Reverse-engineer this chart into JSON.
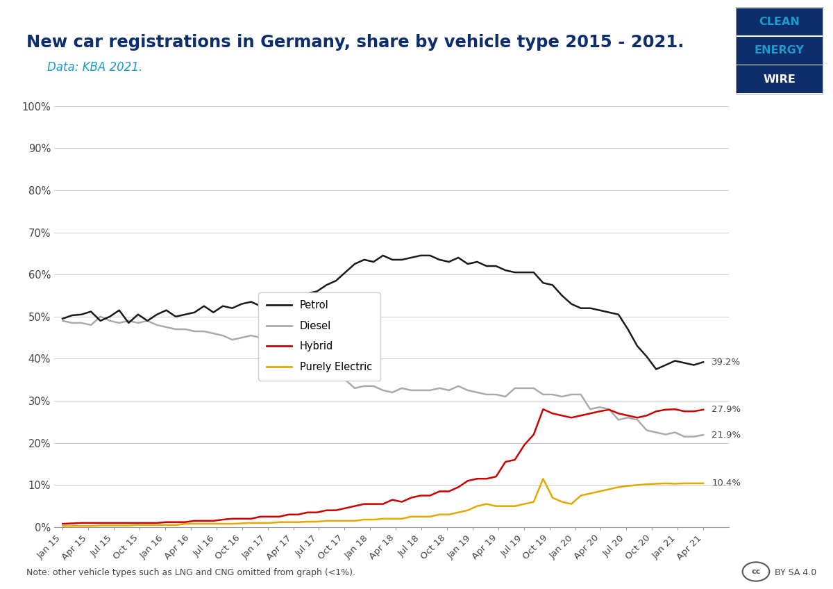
{
  "title": "New car registrations in Germany, share by vehicle type 2015 - 2021.",
  "subtitle": "Data: KBA 2021.",
  "note": "Note: other vehicle types such as LNG and CNG omitted from graph (<1%).",
  "title_color": "#0d2d6b",
  "subtitle_color": "#1a9bcb",
  "x_labels": [
    "Jan 15",
    "Apr 15",
    "Jul 15",
    "Oct 15",
    "Jan 16",
    "Apr 16",
    "Jul 16",
    "Oct 16",
    "Jan 17",
    "Apr 17",
    "Jul 17",
    "Oct 17",
    "Jan 18",
    "Apr 18",
    "Jul 18",
    "Oct 18",
    "Jan 19",
    "Apr 19",
    "Jul 19",
    "Oct 19",
    "Jan 20",
    "Apr 20",
    "Jul 20",
    "Oct 20",
    "Jan 21",
    "Apr 21"
  ],
  "petrol": [
    49.5,
    50.3,
    50.5,
    51.2,
    49.0,
    50.0,
    51.5,
    48.5,
    50.5,
    49.0,
    50.5,
    51.5,
    50.0,
    50.5,
    51.0,
    52.5,
    51.0,
    52.5,
    52.0,
    53.0,
    53.5,
    52.5,
    53.0,
    53.5,
    53.5,
    55.0,
    55.5,
    56.0,
    57.5,
    58.5,
    60.5,
    62.5,
    63.5,
    63.0,
    64.5,
    63.5,
    63.5,
    64.0,
    64.5,
    64.5,
    63.5,
    63.0,
    64.0,
    62.5,
    63.0,
    62.0,
    62.0,
    61.0,
    60.5,
    60.5,
    60.5,
    58.0,
    57.5,
    55.0,
    53.0,
    52.0,
    52.0,
    51.5,
    51.0,
    50.5,
    47.0,
    43.0,
    40.5,
    37.5,
    38.5,
    39.5,
    39.0,
    38.5,
    39.2
  ],
  "diesel": [
    49.0,
    48.5,
    48.5,
    48.0,
    50.0,
    49.0,
    48.5,
    49.0,
    48.5,
    49.0,
    48.0,
    47.5,
    47.0,
    47.0,
    46.5,
    46.5,
    46.0,
    45.5,
    44.5,
    45.0,
    45.5,
    45.0,
    44.5,
    41.5,
    41.5,
    41.5,
    41.0,
    41.0,
    40.0,
    38.0,
    35.0,
    33.0,
    33.5,
    33.5,
    32.5,
    32.0,
    33.0,
    32.5,
    32.5,
    32.5,
    33.0,
    32.5,
    33.5,
    32.5,
    32.0,
    31.5,
    31.5,
    31.0,
    33.0,
    33.0,
    33.0,
    31.5,
    31.5,
    31.0,
    31.5,
    31.5,
    28.0,
    28.5,
    28.0,
    25.5,
    26.0,
    25.5,
    23.0,
    22.5,
    22.0,
    22.5,
    21.5,
    21.5,
    21.9
  ],
  "hybrid": [
    0.8,
    0.9,
    1.0,
    1.0,
    1.0,
    1.0,
    1.0,
    1.0,
    1.0,
    1.0,
    1.0,
    1.2,
    1.2,
    1.2,
    1.5,
    1.5,
    1.5,
    1.8,
    2.0,
    2.0,
    2.0,
    2.5,
    2.5,
    2.5,
    3.0,
    3.0,
    3.5,
    3.5,
    4.0,
    4.0,
    4.5,
    5.0,
    5.5,
    5.5,
    5.5,
    6.5,
    6.0,
    7.0,
    7.5,
    7.5,
    8.5,
    8.5,
    9.5,
    11.0,
    11.5,
    11.5,
    12.0,
    15.5,
    16.0,
    19.5,
    22.0,
    28.0,
    27.0,
    26.5,
    26.0,
    26.5,
    27.0,
    27.5,
    27.9,
    27.0,
    26.5,
    26.0,
    26.5,
    27.5,
    27.9,
    28.0,
    27.5,
    27.5,
    27.9
  ],
  "electric": [
    0.3,
    0.3,
    0.3,
    0.3,
    0.4,
    0.4,
    0.4,
    0.4,
    0.5,
    0.5,
    0.5,
    0.5,
    0.5,
    0.8,
    0.8,
    0.8,
    0.8,
    0.8,
    0.8,
    0.9,
    1.0,
    1.0,
    1.0,
    1.2,
    1.2,
    1.2,
    1.3,
    1.3,
    1.5,
    1.5,
    1.5,
    1.5,
    1.8,
    1.8,
    2.0,
    2.0,
    2.0,
    2.5,
    2.5,
    2.5,
    3.0,
    3.0,
    3.5,
    4.0,
    5.0,
    5.5,
    5.0,
    5.0,
    5.0,
    5.5,
    6.0,
    11.5,
    7.0,
    6.0,
    5.5,
    7.5,
    8.0,
    8.5,
    9.0,
    9.5,
    9.8,
    10.0,
    10.2,
    10.3,
    10.4,
    10.3,
    10.4,
    10.4,
    10.4
  ],
  "end_labels": {
    "petrol": "39.2%",
    "diesel": "21.9%",
    "hybrid": "27.9%",
    "electric": "10.4%"
  },
  "petrol_color": "#1a1a1a",
  "diesel_color": "#aaaaaa",
  "hybrid_color": "#cc0000",
  "electric_color": "#e5a800",
  "background_color": "#ffffff",
  "plot_bg_color": "#ffffff",
  "grid_color": "#cccccc",
  "ylim": [
    0,
    100
  ],
  "yticks": [
    0,
    10,
    20,
    30,
    40,
    50,
    60,
    70,
    80,
    90,
    100
  ],
  "legend_labels": [
    "Petrol",
    "Diesel",
    "Hybrid",
    "Purely Electric"
  ],
  "logo_colors": {
    "clean_bg": "#0d2d6b",
    "energy_bg": "#0d2d6b",
    "wire_bg": "#0d2d6b",
    "clean_text": "#1a9bcb",
    "energy_text": "#1a9bcb",
    "wire_text": "#ffffff"
  }
}
